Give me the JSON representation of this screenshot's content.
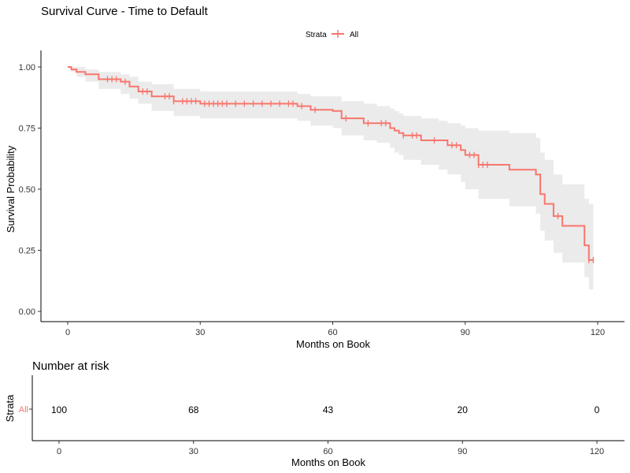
{
  "chart_data": [
    {
      "type": "line",
      "title": "Survival Curve - Time to Default",
      "xlabel": "Months on Book",
      "ylabel": "Survival Probability",
      "xlim": [
        -3,
        125
      ],
      "ylim": [
        -0.02,
        1.06
      ],
      "x_ticks": [
        0,
        30,
        60,
        90,
        120
      ],
      "y_ticks": [
        0.0,
        0.25,
        0.5,
        0.75,
        1.0
      ],
      "y_tick_labels": [
        "0.00",
        "0.25",
        "0.50",
        "0.75",
        "1.00"
      ],
      "grid": false,
      "legend": {
        "position": "top",
        "title": "Strata",
        "entries": [
          "All"
        ]
      },
      "colors": {
        "line": "#F8766D",
        "ci": "#EBEBEB",
        "axis": "#000000"
      },
      "series": [
        {
          "name": "All",
          "step_x": [
            0,
            0.8,
            2,
            4,
            7,
            12,
            14,
            16,
            19,
            24,
            30,
            38,
            52,
            55,
            60,
            62,
            67,
            70,
            73,
            74,
            75,
            76,
            80,
            84,
            86,
            89,
            90,
            93,
            100,
            106,
            107,
            108,
            110,
            112,
            117,
            118,
            119
          ],
          "step_y": [
            1.0,
            0.99,
            0.98,
            0.97,
            0.95,
            0.94,
            0.92,
            0.9,
            0.88,
            0.86,
            0.85,
            0.85,
            0.84,
            0.825,
            0.82,
            0.79,
            0.77,
            0.77,
            0.75,
            0.74,
            0.73,
            0.72,
            0.7,
            0.7,
            0.68,
            0.66,
            0.64,
            0.6,
            0.58,
            0.56,
            0.48,
            0.44,
            0.39,
            0.35,
            0.27,
            0.21,
            0.21
          ],
          "ci_lower": [
            1.0,
            0.98,
            0.96,
            0.94,
            0.91,
            0.89,
            0.87,
            0.85,
            0.82,
            0.8,
            0.79,
            0.79,
            0.78,
            0.76,
            0.75,
            0.72,
            0.7,
            0.69,
            0.67,
            0.65,
            0.64,
            0.62,
            0.6,
            0.58,
            0.56,
            0.53,
            0.5,
            0.46,
            0.43,
            0.4,
            0.33,
            0.29,
            0.24,
            0.2,
            0.14,
            0.09,
            0.09
          ],
          "ci_upper": [
            1.0,
            1.0,
            1.0,
            0.99,
            0.98,
            0.97,
            0.96,
            0.94,
            0.93,
            0.91,
            0.9,
            0.9,
            0.89,
            0.88,
            0.88,
            0.86,
            0.85,
            0.84,
            0.83,
            0.82,
            0.81,
            0.8,
            0.79,
            0.78,
            0.77,
            0.76,
            0.75,
            0.74,
            0.73,
            0.71,
            0.65,
            0.62,
            0.56,
            0.52,
            0.46,
            0.44,
            0.44
          ],
          "censor_x": [
            9,
            10,
            11,
            13,
            17,
            18,
            22,
            23,
            24,
            26,
            27,
            28,
            29,
            31,
            32,
            33,
            34,
            35,
            36,
            38,
            40,
            42,
            44,
            46,
            48,
            50,
            51,
            53,
            56,
            63,
            68,
            71,
            72,
            76,
            78,
            79,
            83,
            87,
            88,
            91,
            92,
            93,
            94,
            95,
            111,
            118,
            119
          ]
        }
      ]
    },
    {
      "type": "table",
      "title": "Number at risk",
      "xlabel": "Months on Book",
      "ylabel": "Strata",
      "row_labels": [
        "All"
      ],
      "x": [
        0,
        30,
        60,
        90,
        120
      ],
      "values": [
        100,
        68,
        43,
        20,
        0
      ],
      "x_tick_labels": [
        "0",
        "30",
        "60",
        "90",
        "120"
      ]
    }
  ]
}
